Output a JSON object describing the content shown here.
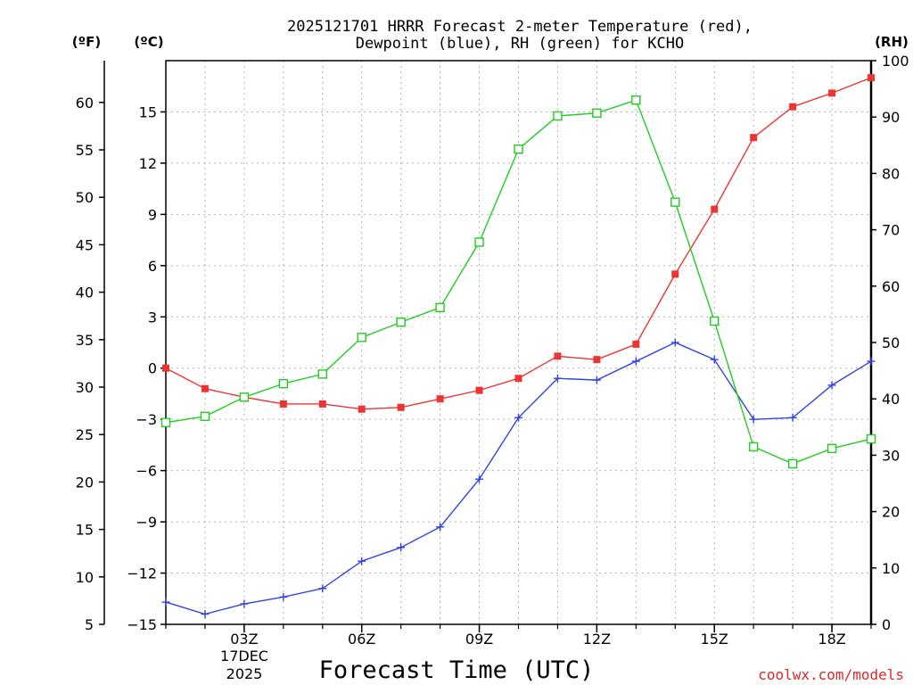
{
  "chart_data": {
    "type": "line",
    "title_line1": "2025121701 HRRR Forecast 2-meter Temperature (red),",
    "title_line2": "Dewpoint (blue), RH (green) for KCHO",
    "xlabel": "Forecast Time (UTC)",
    "left_outer_unit": "(ºF)",
    "left_inner_unit": "(ºC)",
    "right_unit": "(RH)",
    "date_line1": "17DEC",
    "date_line2": "2025",
    "watermark": "coolwx.com/models",
    "x_hours": [
      1,
      2,
      3,
      4,
      5,
      6,
      7,
      8,
      9,
      10,
      11,
      12,
      13,
      14,
      15,
      16,
      17,
      18,
      19
    ],
    "x_range": [
      1,
      19
    ],
    "x_ticks": [
      {
        "hour": 3,
        "label": "03Z"
      },
      {
        "hour": 6,
        "label": "06Z"
      },
      {
        "hour": 9,
        "label": "09Z"
      },
      {
        "hour": 12,
        "label": "12Z"
      },
      {
        "hour": 15,
        "label": "15Z"
      },
      {
        "hour": 18,
        "label": "18Z"
      }
    ],
    "celsius_range": [
      -15,
      18
    ],
    "celsius_ticks": [
      "-15",
      "-12",
      "-9",
      "-6",
      "-3",
      "0",
      "3",
      "6",
      "9",
      "12",
      "15"
    ],
    "fahrenheit_ticks": [
      "5",
      "10",
      "15",
      "20",
      "25",
      "30",
      "35",
      "40",
      "45",
      "50",
      "55",
      "60"
    ],
    "rh_range": [
      0,
      100
    ],
    "rh_ticks": [
      "0",
      "10",
      "20",
      "30",
      "40",
      "50",
      "60",
      "70",
      "80",
      "90",
      "100"
    ],
    "series": [
      {
        "name": "Temperature",
        "color": "#ee3333",
        "marker": "filled-square",
        "axis": "celsius",
        "values": [
          0.0,
          -1.2,
          -1.7,
          -2.1,
          -2.1,
          -2.4,
          -2.3,
          -1.8,
          -1.3,
          -0.6,
          0.7,
          0.5,
          1.4,
          5.5,
          9.3,
          13.5,
          15.3,
          16.1,
          17.0
        ]
      },
      {
        "name": "Dewpoint",
        "color": "#3344dd",
        "marker": "plus",
        "axis": "celsius",
        "values": [
          -13.7,
          -14.4,
          -13.8,
          -13.4,
          -12.9,
          -11.3,
          -10.5,
          -9.3,
          -6.5,
          -2.9,
          -0.6,
          -0.7,
          0.4,
          1.5,
          0.5,
          -3.0,
          -2.9,
          -1.0,
          0.4
        ]
      },
      {
        "name": "RH",
        "color": "#22cc22",
        "marker": "open-square",
        "axis": "rh",
        "values": [
          35.8,
          36.9,
          40.3,
          42.7,
          44.4,
          50.9,
          53.6,
          56.2,
          67.8,
          84.3,
          90.2,
          90.7,
          93.0,
          74.9,
          53.8,
          31.5,
          28.5,
          31.2,
          32.9
        ]
      }
    ]
  }
}
